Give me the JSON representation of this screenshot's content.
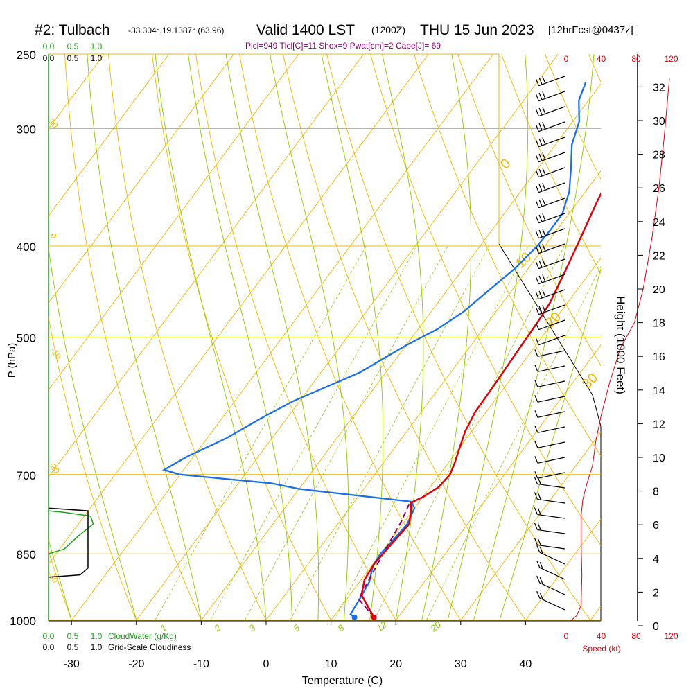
{
  "header": {
    "station": "#2: Tulbach",
    "coords": "-33.304°,19.1387° (63,96)",
    "valid": "Valid 1400 LST",
    "zulu": "(1200Z)",
    "date": "THU 15 Jun 2023",
    "fcst": "[12hrFcst@0437z]",
    "indices": "Plcl=949 Tlcl[C]=11 Shox=9 Pwat[cm]=2 Cape[J]= 69"
  },
  "colors": {
    "temperature": "#e0000b",
    "dewpoint": "#1a6fe8",
    "parcel": "#8b0068",
    "isotherm": "#f2b800",
    "dry_adiabat": "#f2b800",
    "moist_adiabat": "#8fcc00",
    "mixing_ratio": "#8fcc00",
    "cloud_water": "#1aa51a",
    "cloudiness": "#000000",
    "speed": "#e0000b"
  },
  "chart_data": {
    "type": "line",
    "title": "#2: Tulbach  Valid 1400 LST (1200Z) THU 15 Jun 2023 [12hrFcst@0437z]",
    "xlabel": "Temperature (C)",
    "ylabel": "P (hPa)",
    "y2label": "Height (1000 Feet)",
    "xlim": [
      -35,
      45
    ],
    "ylim": [
      1000,
      250
    ],
    "x_ticks": [
      "-30",
      "-20",
      "-10",
      "0",
      "10",
      "20",
      "30",
      "40"
    ],
    "y_ticks": [
      "250",
      "300",
      "400",
      "500",
      "700",
      "850",
      "1000"
    ],
    "height_ticks": [
      "0",
      "2",
      "4",
      "6",
      "8",
      "10",
      "12",
      "14",
      "16",
      "18",
      "20",
      "22",
      "24",
      "26",
      "28",
      "30",
      "32"
    ],
    "speed_ticks": [
      "0",
      "40",
      "80",
      "120"
    ],
    "speed_label": "Speed (kt)",
    "cloud_ticks": [
      "0.0",
      "0.5",
      "1.0"
    ],
    "cloud_water_label": "CloudWater (g/Kg)",
    "cloudiness_label": "Grid-Scale Cloudiness",
    "mixing_ratio_labels": [
      "1",
      "2",
      "3",
      "5",
      "8",
      "12",
      "20"
    ],
    "dry_adiabat_labels": [
      "0",
      "10",
      "20",
      "30"
    ],
    "moist_adiabat_labels": [
      "10",
      "0",
      "-10",
      "-20",
      "-30"
    ],
    "series": [
      {
        "name": "Temperature",
        "points": [
          [
            16.3,
            993
          ],
          [
            11.8,
            940
          ],
          [
            10.5,
            905
          ],
          [
            10.2,
            870
          ],
          [
            10.7,
            820
          ],
          [
            11.0,
            790
          ],
          [
            9.5,
            760
          ],
          [
            8.8,
            750
          ],
          [
            10.0,
            740
          ],
          [
            11.3,
            722
          ],
          [
            11.6,
            700
          ],
          [
            11.0,
            680
          ],
          [
            10.2,
            660
          ],
          [
            9.0,
            630
          ],
          [
            8.3,
            600
          ],
          [
            8.2,
            570
          ],
          [
            8.0,
            540
          ],
          [
            7.8,
            510
          ],
          [
            7.6,
            480
          ],
          [
            7.3,
            460
          ],
          [
            6.0,
            425
          ],
          [
            4.7,
            395
          ],
          [
            3.0,
            360
          ],
          [
            2.1,
            340
          ],
          [
            1.1,
            320
          ],
          [
            -0.1,
            305
          ],
          [
            -1.8,
            285
          ],
          [
            -3.4,
            268
          ]
        ]
      },
      {
        "name": "Dewpoint",
        "points": [
          [
            13.3,
            993
          ],
          [
            12.3,
            985
          ],
          [
            12.0,
            950
          ],
          [
            11.5,
            910
          ],
          [
            10.2,
            875
          ],
          [
            10.0,
            850
          ],
          [
            10.4,
            820
          ],
          [
            10.7,
            790
          ],
          [
            10.0,
            760
          ],
          [
            8.8,
            748
          ],
          [
            -10.0,
            725
          ],
          [
            -15.0,
            715
          ],
          [
            -22.0,
            708
          ],
          [
            -30.0,
            700
          ],
          [
            -33.0,
            692
          ],
          [
            -31.0,
            670
          ],
          [
            -27.0,
            640
          ],
          [
            -24.0,
            610
          ],
          [
            -21.0,
            585
          ],
          [
            -14.0,
            545
          ],
          [
            -10.0,
            510
          ],
          [
            -7.0,
            490
          ],
          [
            -5.0,
            470
          ],
          [
            -3.5,
            445
          ],
          [
            -2.0,
            422
          ],
          [
            -1.2,
            400
          ],
          [
            -1.0,
            385
          ],
          [
            -1.0,
            370
          ],
          [
            -2.5,
            350
          ],
          [
            -5.0,
            330
          ],
          [
            -7.5,
            312
          ],
          [
            -9.0,
            295
          ],
          [
            -11.5,
            280
          ],
          [
            -12.5,
            268
          ]
        ]
      },
      {
        "name": "Parcel",
        "points": [
          [
            16.3,
            993
          ],
          [
            11.8,
            949
          ],
          [
            11.2,
            905
          ],
          [
            10.7,
            870
          ],
          [
            10.0,
            820
          ],
          [
            9.5,
            785
          ],
          [
            8.6,
            748
          ]
        ]
      }
    ],
    "cloud_water": [
      [
        0.0,
        850
      ],
      [
        0.3,
        840
      ],
      [
        0.55,
        815
      ],
      [
        0.85,
        790
      ],
      [
        0.8,
        775
      ],
      [
        0.3,
        768
      ],
      [
        0.0,
        765
      ]
    ],
    "cloudiness": [
      [
        0.0,
        900
      ],
      [
        0.6,
        895
      ],
      [
        0.75,
        880
      ],
      [
        0.75,
        770
      ],
      [
        0.75,
        765
      ],
      [
        0.0,
        760
      ]
    ],
    "speed_profile_kt": [
      [
        5,
        0.3
      ],
      [
        12,
        0.6
      ],
      [
        17,
        1.2
      ],
      [
        18,
        3
      ],
      [
        17,
        5
      ],
      [
        17,
        6.5
      ],
      [
        19,
        7.5
      ],
      [
        24,
        8.5
      ],
      [
        30,
        9.5
      ],
      [
        34,
        11
      ],
      [
        40,
        12.5
      ],
      [
        50,
        14.5
      ],
      [
        62,
        16.5
      ],
      [
        78,
        18
      ],
      [
        88,
        20
      ],
      [
        98,
        23
      ],
      [
        106,
        26
      ],
      [
        112,
        29
      ],
      [
        118,
        32.5
      ]
    ]
  }
}
